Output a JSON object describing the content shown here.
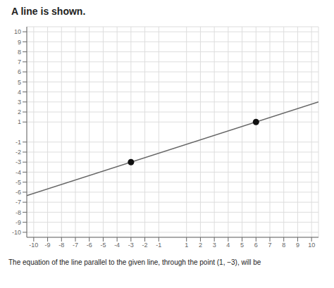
{
  "chart_data": {
    "type": "line",
    "title": "A line is shown.",
    "annotations": [
      "The equation of the line parallel to the given line, through the point (1, −3), will be"
    ],
    "xlim": [
      -10.5,
      10.5
    ],
    "ylim": [
      -10.5,
      10.5
    ],
    "xticks": [
      -10,
      -9,
      -8,
      -7,
      -6,
      -5,
      -4,
      -3,
      -2,
      -1,
      1,
      2,
      3,
      4,
      5,
      6,
      7,
      8,
      9,
      10
    ],
    "yticks": [
      -10,
      -9,
      -8,
      -7,
      -6,
      -5,
      -4,
      -3,
      -2,
      -1,
      1,
      2,
      3,
      4,
      5,
      6,
      7,
      8,
      9,
      10
    ],
    "grid": true,
    "series": [
      {
        "type": "line",
        "color": "#666666",
        "x": [
          -10.5,
          10.5
        ],
        "values": [
          -6.3329,
          2.9995
        ]
      },
      {
        "type": "scatter",
        "color": "#111111",
        "x": [
          -3,
          6
        ],
        "values": [
          -3,
          1
        ]
      }
    ]
  }
}
